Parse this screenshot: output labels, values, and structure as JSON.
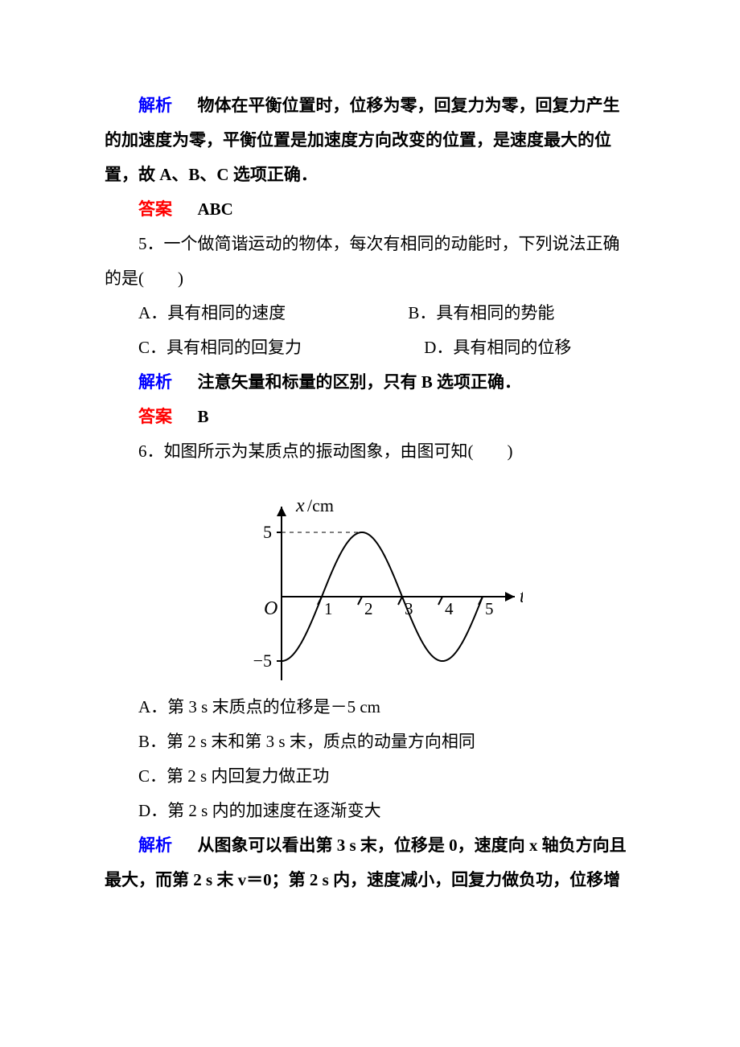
{
  "block4": {
    "analysis_label": "解析",
    "analysis_text_line1": "物体在平衡位置时，位移为零，回复力为零，回复力产生",
    "analysis_text_line2": "的加速度为零，平衡位置是加速度方向改变的位置，是速度最大的位",
    "analysis_text_line3": "置，故 A、B、C 选项正确．",
    "answer_label": "答案",
    "answer_text": "ABC"
  },
  "q5": {
    "stem_line1": "5．一个做简谐运动的物体，每次有相同的动能时，下列说法正确",
    "stem_line2": "的是(　　)",
    "optA": "A．具有相同的速度",
    "optB": "B．具有相同的势能",
    "optC": "C．具有相同的回复力",
    "optD": "D．具有相同的位移",
    "analysis_label": "解析",
    "analysis_text": "注意矢量和标量的区别，只有 B 选项正确．",
    "answer_label": "答案",
    "answer_text": "B"
  },
  "q6": {
    "stem": "6．如图所示为某质点的振动图象，由图可知(　　)",
    "optA": "A．第 3 s 末质点的位移是－5 cm",
    "optB": "B．第 2 s 末和第 3 s 末，质点的动量方向相同",
    "optC": "C．第 2 s 内回复力做正功",
    "optD": "D．第 2 s 内的加速度在逐渐变大",
    "analysis_label": "解析",
    "analysis_text_line1": "从图象可以看出第 3 s 末，位移是 0，速度向 x 轴负方向且",
    "analysis_text_line2": "最大，而第 2 s 末 v＝0；第 2 s 内，速度减小，回复力做负功，位移增"
  },
  "figure": {
    "type": "line",
    "y_label": "x/cm",
    "x_label": "t/s",
    "y_tick_pos": "5",
    "y_tick_neg": "−5",
    "x_ticks": [
      "1",
      "2",
      "3",
      "4",
      "5"
    ],
    "origin_label": "O",
    "xlim": [
      0,
      5.4
    ],
    "ylim": [
      -6.5,
      6.5
    ],
    "amplitude": 5,
    "period": 4,
    "initial_x_at_t0": -5,
    "axis_color": "#000000",
    "curve_color": "#000000",
    "line_width": 2,
    "tick_length": 6,
    "label_font": "italic 22px Times",
    "number_font": "20px Times",
    "unit_font": "22px Times"
  }
}
